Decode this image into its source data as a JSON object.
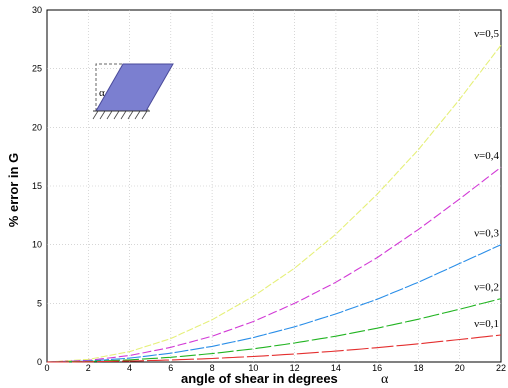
{
  "chart_data": {
    "type": "line",
    "xlabel": "angle of shear in degrees",
    "xlabel_symbol": "α",
    "ylabel": "% error in G",
    "xlim": [
      0,
      22
    ],
    "ylim": [
      0,
      30
    ],
    "xticks": [
      0,
      2,
      4,
      6,
      8,
      10,
      12,
      14,
      16,
      18,
      20,
      22
    ],
    "yticks": [
      0,
      5,
      10,
      15,
      20,
      25,
      30
    ],
    "grid": true,
    "inset_label": "α",
    "series": [
      {
        "name": "ν=0,5",
        "color": "#e6f07a",
        "x": [
          0,
          2,
          4,
          6,
          8,
          10,
          12,
          14,
          16,
          18,
          20,
          22
        ],
        "y": [
          0,
          0.22,
          0.88,
          2.0,
          3.6,
          5.6,
          8.0,
          10.9,
          14.3,
          18.1,
          22.4,
          27.0
        ]
      },
      {
        "name": "ν=0,4",
        "color": "#d23ad6",
        "x": [
          0,
          2,
          4,
          6,
          8,
          10,
          12,
          14,
          16,
          18,
          20,
          22
        ],
        "y": [
          0,
          0.14,
          0.55,
          1.25,
          2.2,
          3.45,
          5.0,
          6.8,
          8.9,
          11.3,
          13.9,
          16.6
        ]
      },
      {
        "name": "ν=0,3",
        "color": "#2a8ee8",
        "x": [
          0,
          2,
          4,
          6,
          8,
          10,
          12,
          14,
          16,
          18,
          20,
          22
        ],
        "y": [
          0,
          0.08,
          0.33,
          0.75,
          1.33,
          2.08,
          3.0,
          4.1,
          5.35,
          6.8,
          8.4,
          10.0
        ]
      },
      {
        "name": "ν=0,2",
        "color": "#22b422",
        "x": [
          0,
          2,
          4,
          6,
          8,
          10,
          12,
          14,
          16,
          18,
          20,
          22
        ],
        "y": [
          0,
          0.045,
          0.18,
          0.4,
          0.72,
          1.12,
          1.62,
          2.2,
          2.88,
          3.65,
          4.5,
          5.4
        ]
      },
      {
        "name": "ν=0,1",
        "color": "#e43030",
        "x": [
          0,
          2,
          4,
          6,
          8,
          10,
          12,
          14,
          16,
          18,
          20,
          22
        ],
        "y": [
          0,
          0.02,
          0.08,
          0.17,
          0.3,
          0.47,
          0.68,
          0.93,
          1.22,
          1.55,
          1.92,
          2.3
        ]
      }
    ]
  }
}
